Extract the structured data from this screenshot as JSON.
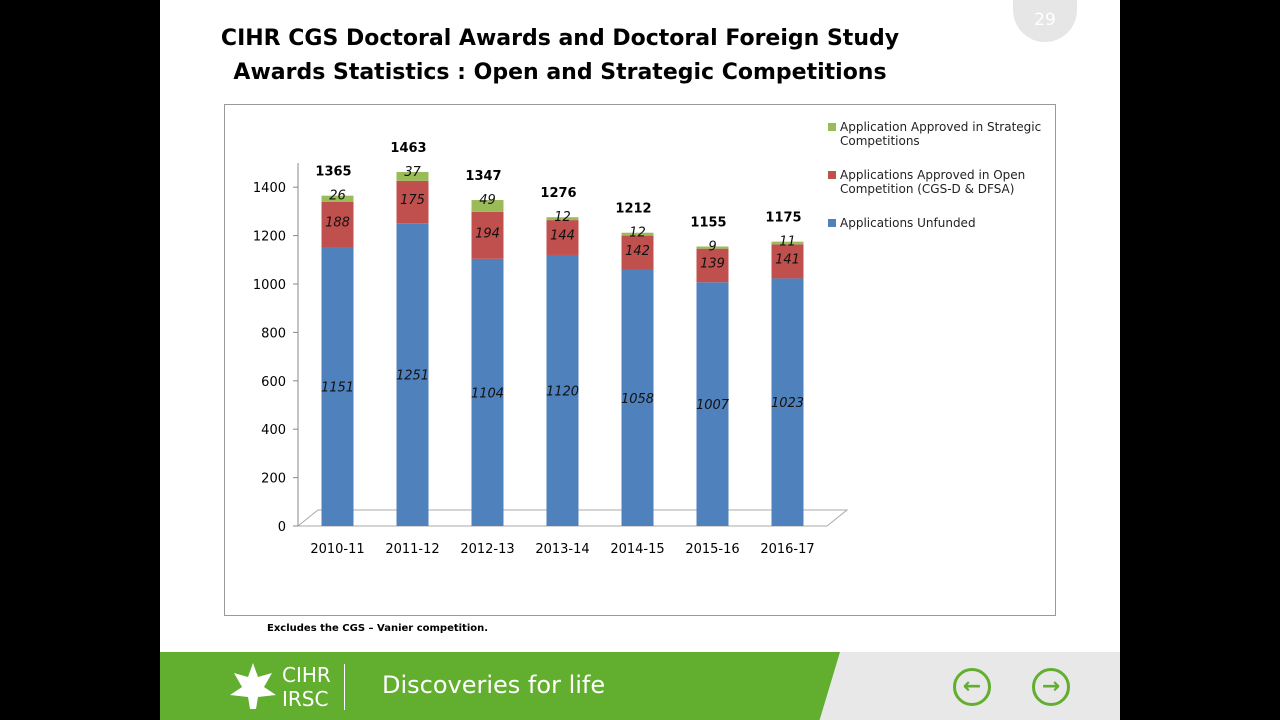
{
  "slide_number": "29",
  "title_lines": [
    "CIHR CGS Doctoral Awards and Doctoral Foreign Study",
    "Awards Statistics : Open and Strategic Competitions"
  ],
  "note": "Excludes the CGS – Vanier competition.",
  "footer": {
    "logo_top": "CIHR",
    "logo_bottom": "IRSC",
    "tagline": "Discoveries for life"
  },
  "chart_data": {
    "type": "stacked_bar",
    "categories": [
      "2010-11",
      "2011-12",
      "2012-13",
      "2013-14",
      "2014-15",
      "2015-16",
      "2016-17"
    ],
    "series": [
      {
        "name": "Applications Unfunded",
        "color": "#4f81bd",
        "values": [
          1151,
          1251,
          1104,
          1120,
          1058,
          1007,
          1023
        ]
      },
      {
        "name": "Applications Approved in Open Competition (CGS-D & DFSA)",
        "color": "#c0504d",
        "values": [
          188,
          175,
          194,
          144,
          142,
          139,
          141
        ]
      },
      {
        "name": "Application Approved in Strategic Competitions",
        "color": "#9bbb59",
        "values": [
          26,
          37,
          49,
          12,
          12,
          9,
          11
        ]
      }
    ],
    "totals": [
      1365,
      1463,
      1347,
      1276,
      1212,
      1155,
      1175
    ],
    "ylim": [
      0,
      1500
    ],
    "yticks": [
      0,
      200,
      400,
      600,
      800,
      1000,
      1200,
      1400
    ],
    "grid": false,
    "legend": "right"
  }
}
